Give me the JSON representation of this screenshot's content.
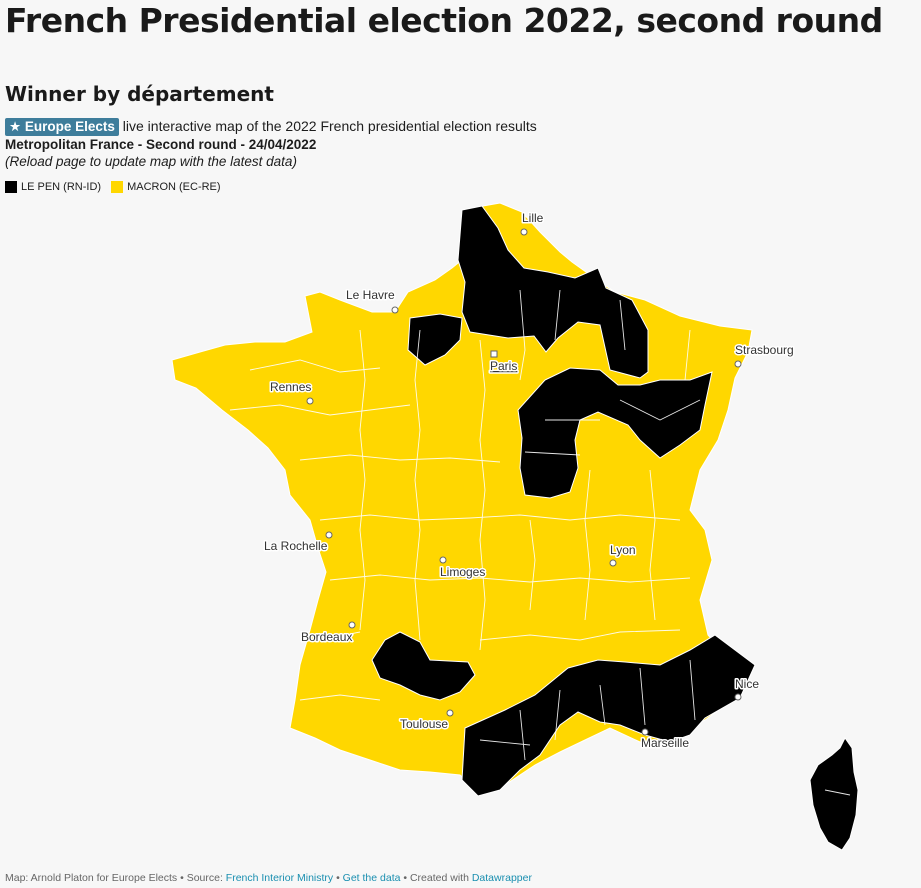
{
  "header": {
    "title": "French Presidential election 2022, second round",
    "subtitle": "Winner by département"
  },
  "description": {
    "badge": "★ Europe Elects",
    "line1_rest": " live interactive map of the 2022 French presidential election results",
    "line2": "Metropolitan France - Second round - 24/04/2022",
    "line3": "(Reload page to update map with the latest data)"
  },
  "legend": [
    {
      "label": "LE PEN (RN-ID)",
      "color": "#000000"
    },
    {
      "label": "MACRON (EC-RE)",
      "color": "#ffd700"
    }
  ],
  "map": {
    "colors": {
      "macron": "#ffd700",
      "lepen": "#000000",
      "border": "#ffffff"
    },
    "cities": [
      {
        "name": "Lille"
      },
      {
        "name": "Le Havre"
      },
      {
        "name": "Paris"
      },
      {
        "name": "Strasbourg"
      },
      {
        "name": "Rennes"
      },
      {
        "name": "La Rochelle"
      },
      {
        "name": "Limoges"
      },
      {
        "name": "Lyon"
      },
      {
        "name": "Bordeaux"
      },
      {
        "name": "Toulouse"
      },
      {
        "name": "Nice"
      },
      {
        "name": "Marseille"
      }
    ]
  },
  "footer": {
    "prefix": "Map: Arnold Platon for Europe Elects • Source: ",
    "source_link": "French Interior Ministry",
    "sep1": " • ",
    "data_link": "Get the data",
    "sep2": " • Created with ",
    "tool_link": "Datawrapper"
  }
}
